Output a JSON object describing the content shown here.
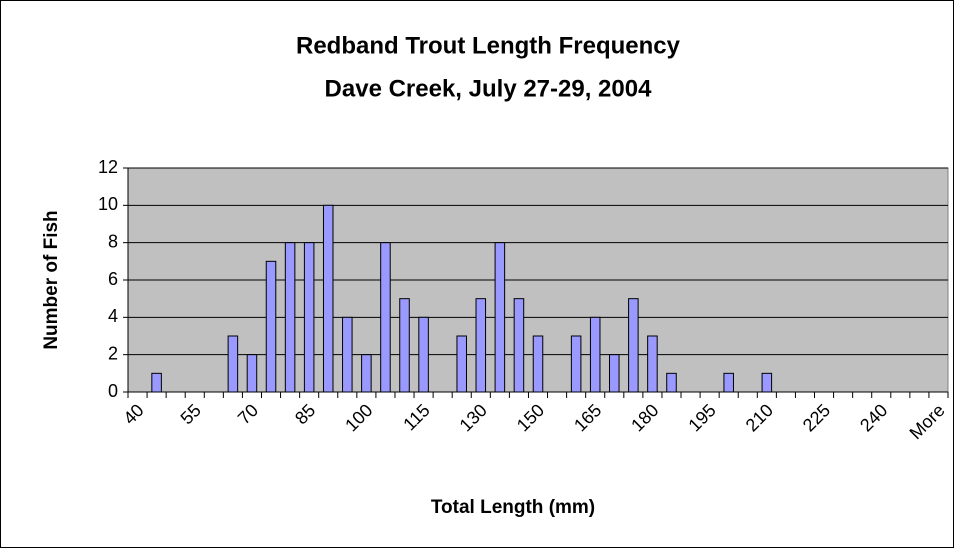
{
  "chart_data": {
    "type": "bar",
    "title": "Redband Trout Length Frequency",
    "subtitle": "Dave Creek, July 27-29, 2004",
    "x_label": "Total Length (mm)",
    "y_label": "Number of Fish",
    "categories": [
      "40",
      null,
      null,
      "55",
      null,
      null,
      "70",
      null,
      null,
      "85",
      null,
      null,
      "100",
      null,
      null,
      "115",
      null,
      null,
      "130",
      null,
      null,
      "150",
      null,
      null,
      "165",
      null,
      null,
      "180",
      null,
      null,
      "195",
      null,
      null,
      "210",
      null,
      null,
      "225",
      null,
      null,
      "240",
      null,
      null,
      "More"
    ],
    "values": [
      0,
      1,
      0,
      0,
      0,
      3,
      2,
      7,
      8,
      8,
      10,
      4,
      2,
      8,
      5,
      4,
      0,
      3,
      5,
      8,
      5,
      3,
      0,
      3,
      4,
      2,
      5,
      3,
      1,
      0,
      0,
      1,
      0,
      1,
      0,
      0,
      0,
      0,
      0,
      0,
      0,
      0,
      0
    ],
    "color": "#9999ff",
    "ylim": [
      0,
      12
    ],
    "yticks": [
      0,
      2,
      4,
      6,
      8,
      10,
      12
    ],
    "grid": true
  }
}
